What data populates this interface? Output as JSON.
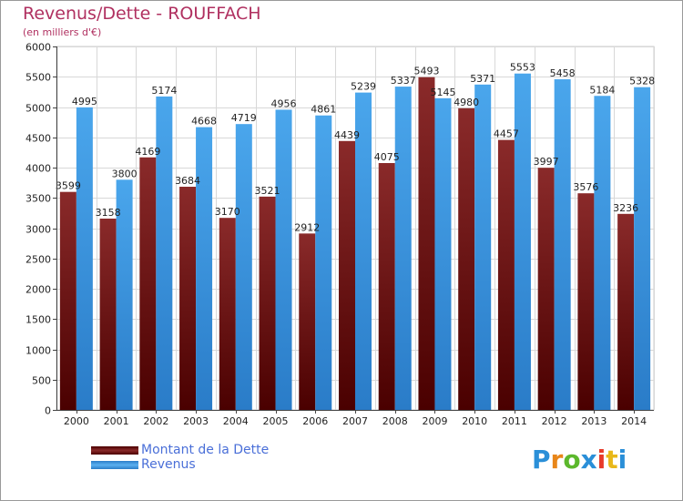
{
  "header": {
    "title": "Revenus/Dette - ROUFFACH",
    "subtitle": "(en milliers d'€)"
  },
  "colors": {
    "dette": "#7a1e1e",
    "revenus": "#3e9ae2",
    "grid": "#d8d8d8",
    "title": "#b03060",
    "legend_text": "#4a6fd8"
  },
  "chart_data": {
    "type": "bar",
    "title": "Revenus/Dette - ROUFFACH",
    "subtitle": "(en milliers d'€)",
    "categories": [
      "2000",
      "2001",
      "2002",
      "2003",
      "2004",
      "2005",
      "2006",
      "2007",
      "2008",
      "2009",
      "2010",
      "2011",
      "2012",
      "2013",
      "2014"
    ],
    "series": [
      {
        "name": "Montant de la Dette",
        "values": [
          3599,
          3158,
          4169,
          3684,
          3170,
          3521,
          2912,
          4439,
          4075,
          5493,
          4980,
          4457,
          3997,
          3576,
          3236
        ]
      },
      {
        "name": "Revenus",
        "values": [
          4995,
          3800,
          5174,
          4668,
          4719,
          4956,
          4861,
          5239,
          5337,
          5145,
          5371,
          5553,
          5458,
          5184,
          5328
        ]
      }
    ],
    "data_labels_dette": [
      "3599",
      "3158",
      "4169",
      "3684",
      "3170",
      "3521",
      "2912",
      "4439",
      "4075",
      "5493",
      "4980",
      "4457",
      "3997",
      "3576",
      "3236"
    ],
    "data_labels_revenus": [
      "4995",
      "3800",
      "5174",
      "4668",
      "4719",
      "4956",
      "4861",
      "5239",
      "5337",
      "5145",
      "5371",
      "5553",
      "5458",
      "5184",
      "5328"
    ],
    "ylim": [
      0,
      6000
    ],
    "yticks": [
      "0",
      "500",
      "1000",
      "1500",
      "2000",
      "2500",
      "3000",
      "3500",
      "4000",
      "4500",
      "5000",
      "5500",
      "6000"
    ],
    "grid": true,
    "legend_position": "bottom-left"
  },
  "legend": {
    "items": [
      {
        "label": "Montant de la Dette"
      },
      {
        "label": "Revenus"
      }
    ]
  },
  "logo": {
    "letters": [
      "P",
      "r",
      "o",
      "x",
      "i",
      "t",
      "i"
    ],
    "colors": [
      "#2a8fd8",
      "#e8861a",
      "#5cb82c",
      "#2a8fd8",
      "#e83a2a",
      "#e8b81a",
      "#2a8fd8"
    ]
  }
}
